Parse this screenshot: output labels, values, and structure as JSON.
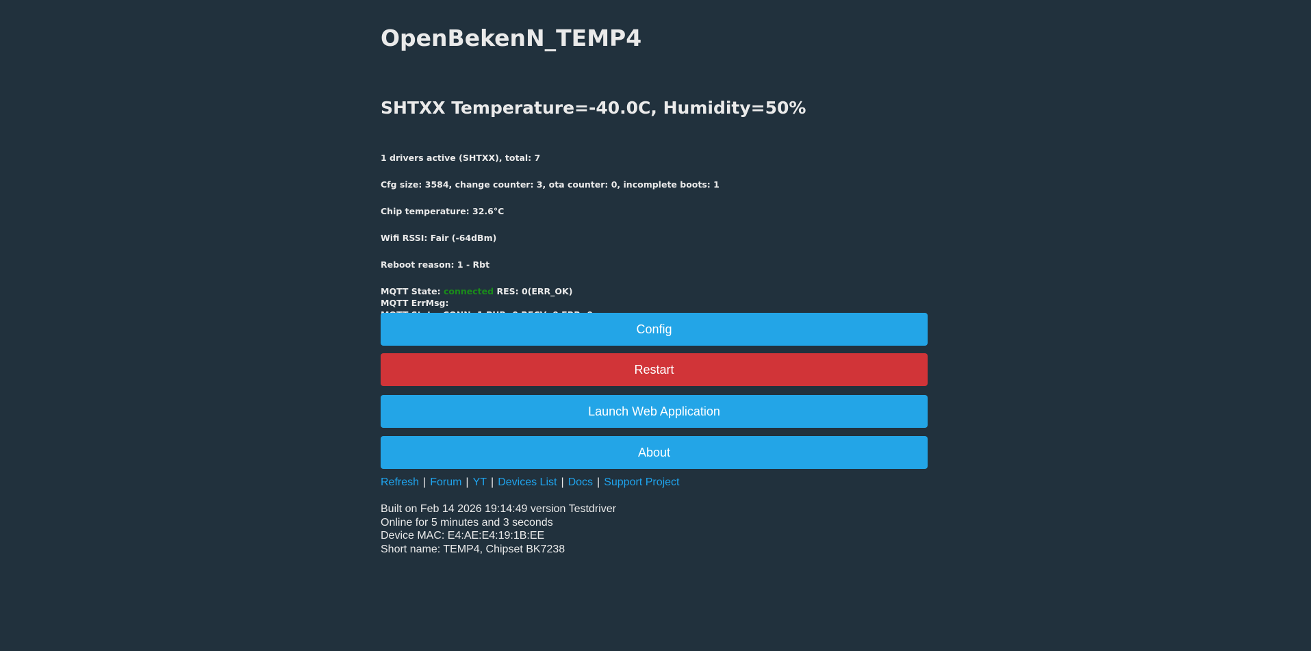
{
  "title": "OpenBekenN_TEMP4",
  "sensor_heading": "SHTXX Temperature=-40.0C, Humidity=50%",
  "info": {
    "drivers": "1 drivers active (SHTXX), total: 7",
    "cfg": "Cfg size: 3584, change counter: 3, ota counter: 0, incomplete boots: 1",
    "chip_temp": "Chip temperature: 32.6°C",
    "wifi": "Wifi RSSI: Fair (-64dBm)",
    "reboot": "Reboot reason: 1 - Rbt",
    "mqtt_state_label": "MQTT State:",
    "mqtt_state_value": "connected",
    "mqtt_res": "RES: 0(ERR_OK)",
    "mqtt_errmsg": "MQTT ErrMsg:",
    "mqtt_stats": "MQTT Stats: CONN: 1 PUB: 0 RECV: 0 ERR: 0"
  },
  "buttons": {
    "config": "Config",
    "restart": "Restart",
    "launch": "Launch Web Application",
    "about": "About"
  },
  "links": [
    "Refresh",
    "Forum",
    "YT",
    "Devices List",
    "Docs",
    "Support Project"
  ],
  "link_separator": "|",
  "footer": {
    "built": "Built on Feb 14 2026 19:14:49 version Testdriver",
    "online": "Online for 5 minutes and 3 seconds",
    "mac": "Device MAC: E4:AE:E4:19:1B:EE",
    "short_name": "Short name: TEMP4, Chipset BK7238"
  },
  "colors": {
    "background": "#21313d",
    "button_blue": "#23a5e7",
    "button_red": "#d13438",
    "link": "#1fa3ec",
    "connected": "#1a8c1a"
  }
}
